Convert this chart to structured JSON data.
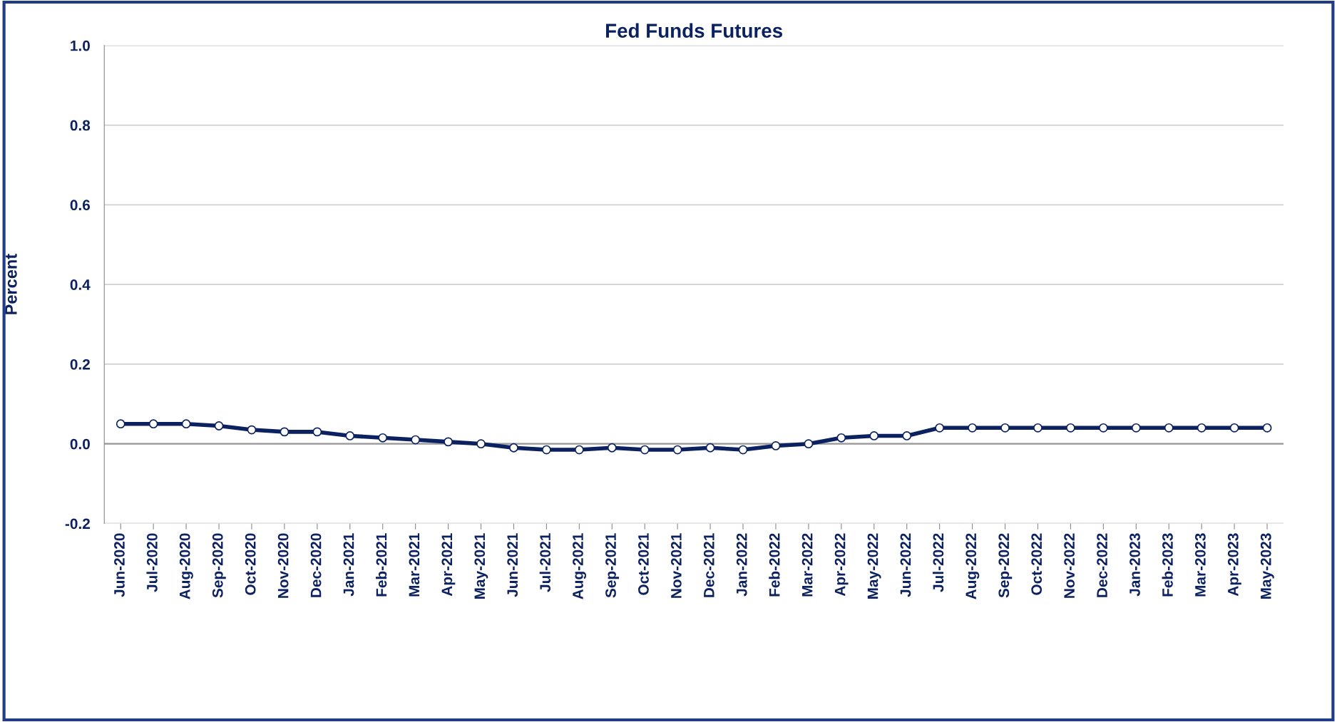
{
  "chart_data": {
    "type": "line",
    "title": "Fed Funds Futures",
    "ylabel": "Percent",
    "categories": [
      "Jun-2020",
      "Jul-2020",
      "Aug-2020",
      "Sep-2020",
      "Oct-2020",
      "Nov-2020",
      "Dec-2020",
      "Jan-2021",
      "Feb-2021",
      "Mar-2021",
      "Apr-2021",
      "May-2021",
      "Jun-2021",
      "Jul-2021",
      "Aug-2021",
      "Sep-2021",
      "Oct-2021",
      "Nov-2021",
      "Dec-2021",
      "Jan-2022",
      "Feb-2022",
      "Mar-2022",
      "Apr-2022",
      "May-2022",
      "Jun-2022",
      "Jul-2022",
      "Aug-2022",
      "Sep-2022",
      "Oct-2022",
      "Nov-2022",
      "Dec-2022",
      "Jan-2023",
      "Feb-2023",
      "Mar-2023",
      "Apr-2023",
      "May-2023"
    ],
    "series": [
      {
        "color": "#0b2160",
        "values": [
          0.05,
          0.05,
          0.05,
          0.045,
          0.035,
          0.03,
          0.03,
          0.02,
          0.015,
          0.01,
          0.005,
          0.0,
          -0.01,
          -0.015,
          -0.015,
          -0.01,
          -0.015,
          -0.015,
          -0.01,
          -0.015,
          -0.005,
          0.0,
          0.015,
          0.02,
          0.02,
          0.04,
          0.04,
          0.04,
          0.04,
          0.04,
          0.04,
          0.04,
          0.04,
          0.04,
          0.04,
          0.04
        ]
      }
    ],
    "ylim": [
      -0.2,
      1.0
    ],
    "yticks": [
      {
        "value": -0.2,
        "label": "-0.2"
      },
      {
        "value": 0,
        "label": "0.0"
      },
      {
        "value": 0.2,
        "label": "0.2"
      },
      {
        "value": 0.4,
        "label": "0.4"
      },
      {
        "value": 0.6,
        "label": "0.6"
      },
      {
        "value": 0.8,
        "label": "0.8"
      },
      {
        "value": 1.0,
        "label": "1.0"
      }
    ],
    "grid": "y",
    "marker": "circle",
    "line_style": "solid"
  }
}
